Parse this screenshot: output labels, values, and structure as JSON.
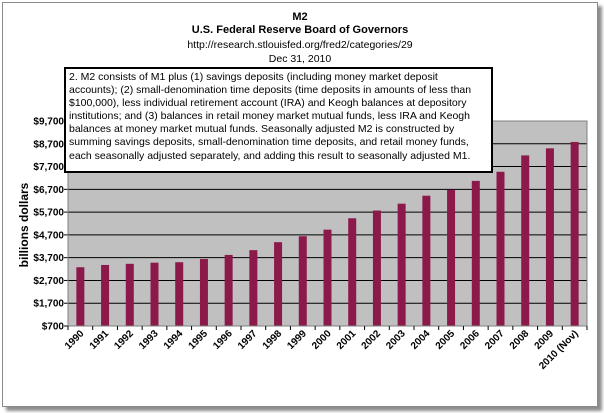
{
  "chart_data": {
    "type": "bar",
    "title": "M2",
    "subtitle": "U.S. Federal Reserve Board of Governors",
    "source": "http://research.stlouisfed.org/fred2/categories/29",
    "date": "Dec 31, 2010",
    "xlabel": "",
    "ylabel": "billions dollars",
    "ylim": [
      700,
      9700
    ],
    "yticks": [
      "$700",
      "$1,700",
      "$2,700",
      "$3,700",
      "$4,700",
      "$5,700",
      "$6,700",
      "$7,700",
      "$8,700",
      "$9,700"
    ],
    "ytick_values": [
      700,
      1700,
      2700,
      3700,
      4700,
      5700,
      6700,
      7700,
      8700,
      9700
    ],
    "categories": [
      "1990",
      "1991",
      "1992",
      "1993",
      "1994",
      "1995",
      "1996",
      "1997",
      "1998",
      "1999",
      "2000",
      "2001",
      "2002",
      "2003",
      "2004",
      "2005",
      "2006",
      "2007",
      "2008",
      "2009",
      "2010 (Nov)"
    ],
    "values": [
      3280,
      3380,
      3430,
      3480,
      3500,
      3640,
      3820,
      4030,
      4380,
      4640,
      4930,
      5430,
      5770,
      6070,
      6420,
      6680,
      7070,
      7470,
      8190,
      8500,
      8780
    ],
    "grid": true,
    "legend": "none",
    "annotation": "2. M2 consists of M1 plus (1) savings deposits (including money market deposit accounts); (2) small-denomination time deposits (time deposits in amounts of less than $100,000), less individual retirement account (IRA) and Keogh balances at depository institutions; and (3) balances in retail money market mutual funds, less IRA and Keogh balances at money market mutual funds. Seasonally adjusted M2 is constructed by summing savings deposits, small-denomination time deposits, and retail money funds, each seasonally adjusted separately, and adding this result to seasonally adjusted M1."
  },
  "colors": {
    "plot_bg": "#c0c0c0",
    "bar": "#8b1a4a",
    "grid": "#000000",
    "frame": "#8a8a8a"
  }
}
